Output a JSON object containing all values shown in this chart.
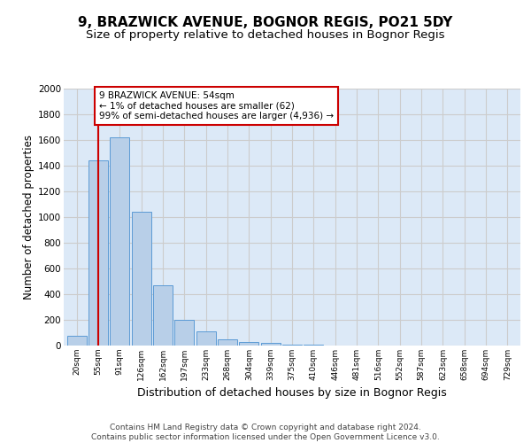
{
  "title_line1": "9, BRAZWICK AVENUE, BOGNOR REGIS, PO21 5DY",
  "title_line2": "Size of property relative to detached houses in Bognor Regis",
  "xlabel": "Distribution of detached houses by size in Bognor Regis",
  "ylabel": "Number of detached properties",
  "footnote": "Contains HM Land Registry data © Crown copyright and database right 2024.\nContains public sector information licensed under the Open Government Licence v3.0.",
  "bar_labels": [
    "20sqm",
    "55sqm",
    "91sqm",
    "126sqm",
    "162sqm",
    "197sqm",
    "233sqm",
    "268sqm",
    "304sqm",
    "339sqm",
    "375sqm",
    "410sqm",
    "446sqm",
    "481sqm",
    "516sqm",
    "552sqm",
    "587sqm",
    "623sqm",
    "658sqm",
    "694sqm",
    "729sqm"
  ],
  "bar_values": [
    75,
    1440,
    1620,
    1040,
    470,
    200,
    110,
    50,
    30,
    20,
    10,
    5,
    2,
    2,
    2,
    2,
    2,
    2,
    2,
    2,
    2
  ],
  "bar_color": "#b8cfe8",
  "bar_edge_color": "#5b9bd5",
  "annotation_text": "9 BRAZWICK AVENUE: 54sqm\n← 1% of detached houses are smaller (62)\n99% of semi-detached houses are larger (4,936) →",
  "annotation_box_color": "#ffffff",
  "annotation_box_edge": "#cc0000",
  "vline_x": 1,
  "vline_color": "#cc0000",
  "ylim": [
    0,
    2000
  ],
  "yticks": [
    0,
    200,
    400,
    600,
    800,
    1000,
    1200,
    1400,
    1600,
    1800,
    2000
  ],
  "grid_color": "#cccccc",
  "bg_color": "#dce9f7",
  "title1_fontsize": 11,
  "title2_fontsize": 9.5,
  "ylabel_fontsize": 8.5,
  "xlabel_fontsize": 9,
  "footnote_fontsize": 6.5,
  "annot_fontsize": 7.5
}
